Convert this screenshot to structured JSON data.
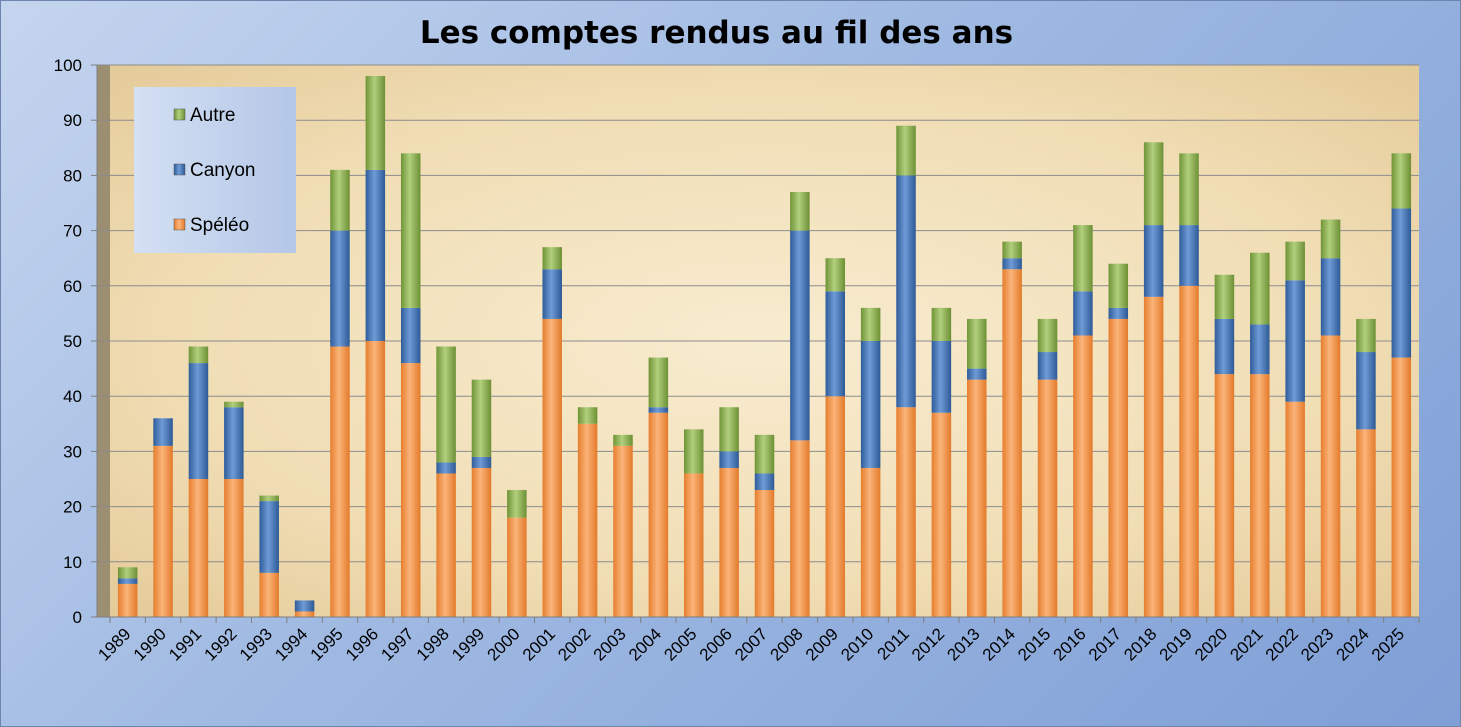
{
  "chart_data": {
    "type": "bar",
    "stacked": true,
    "title": "Les comptes rendus au fil des ans",
    "xlabel": "",
    "ylabel": "",
    "ylim": [
      0,
      100
    ],
    "yticks": [
      "0",
      "10",
      "20",
      "30",
      "40",
      "50",
      "60",
      "70",
      "80",
      "90",
      "100"
    ],
    "grid": true,
    "legend_position": "top-left",
    "categories": [
      "1989",
      "1990",
      "1991",
      "1992",
      "1993",
      "1994",
      "1995",
      "1996",
      "1997",
      "1998",
      "1999",
      "2000",
      "2001",
      "2002",
      "2003",
      "2004",
      "2005",
      "2006",
      "2007",
      "2008",
      "2009",
      "2010",
      "2011",
      "2012",
      "2013",
      "2014",
      "2015",
      "2016",
      "2017",
      "2018",
      "2019",
      "2020",
      "2021",
      "2022",
      "2023",
      "2024",
      "2025"
    ],
    "series": [
      {
        "name": "Spéléo",
        "color": "#f79646",
        "values": [
          6,
          31,
          25,
          25,
          8,
          1,
          49,
          50,
          46,
          26,
          27,
          18,
          54,
          35,
          31,
          37,
          26,
          27,
          23,
          32,
          40,
          27,
          38,
          37,
          43,
          63,
          43,
          51,
          54,
          58,
          60,
          44,
          44,
          39,
          51,
          34,
          47
        ]
      },
      {
        "name": "Canyon",
        "color": "#4f81bd",
        "values": [
          1,
          5,
          21,
          13,
          13,
          2,
          21,
          31,
          10,
          2,
          2,
          0,
          9,
          0,
          0,
          1,
          0,
          3,
          3,
          38,
          19,
          23,
          42,
          13,
          2,
          2,
          5,
          8,
          2,
          13,
          11,
          10,
          9,
          22,
          14,
          14,
          27
        ]
      },
      {
        "name": "Autre",
        "color": "#9bbb59",
        "values": [
          2,
          0,
          3,
          1,
          1,
          0,
          11,
          17,
          28,
          21,
          14,
          5,
          4,
          3,
          2,
          9,
          8,
          8,
          7,
          7,
          6,
          6,
          9,
          6,
          9,
          3,
          6,
          12,
          8,
          15,
          13,
          8,
          13,
          7,
          7,
          6,
          10
        ]
      }
    ]
  }
}
